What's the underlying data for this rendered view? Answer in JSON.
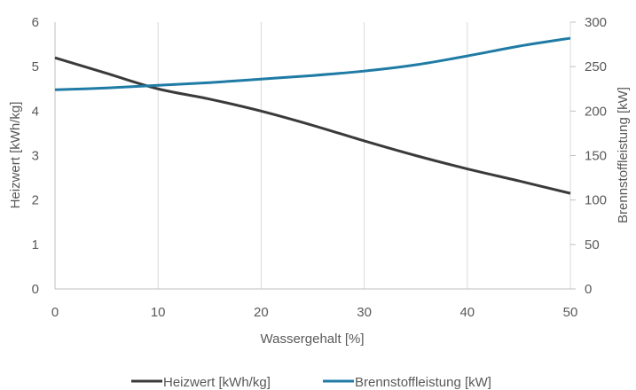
{
  "chart_data": {
    "type": "line",
    "title": "",
    "xlabel": "Wassergehalt [%]",
    "ylabel": "Heizwert [kWh/kg]",
    "y2label": "Brennstoffleistung [kW]",
    "xlim": [
      0,
      50
    ],
    "ylim": [
      0,
      6
    ],
    "y2lim": [
      0,
      300
    ],
    "xticks": [
      "0",
      "10",
      "20",
      "30",
      "40",
      "50"
    ],
    "yticks": [
      "0",
      "1",
      "2",
      "3",
      "4",
      "5",
      "6"
    ],
    "y2ticks": [
      "0",
      "50",
      "100",
      "150",
      "200",
      "250",
      "300"
    ],
    "grid": "vertical",
    "legend_position": "bottom",
    "series": [
      {
        "name": "Heizwert [kWh/kg]",
        "axis": "left",
        "color": "#3a3a3a",
        "x": [
          0,
          5,
          10,
          15,
          20,
          25,
          30,
          35,
          40,
          45,
          50
        ],
        "y": [
          5.2,
          4.85,
          4.5,
          4.27,
          4.0,
          3.68,
          3.33,
          3.0,
          2.7,
          2.43,
          2.15
        ]
      },
      {
        "name": "Brennstoffleistung [kW]",
        "axis": "right",
        "color": "#1f7ba5",
        "x": [
          0,
          5,
          10,
          15,
          20,
          25,
          30,
          35,
          40,
          45,
          50
        ],
        "y": [
          224,
          226,
          229,
          232,
          236,
          240,
          245,
          252,
          262,
          273,
          282
        ]
      }
    ]
  }
}
